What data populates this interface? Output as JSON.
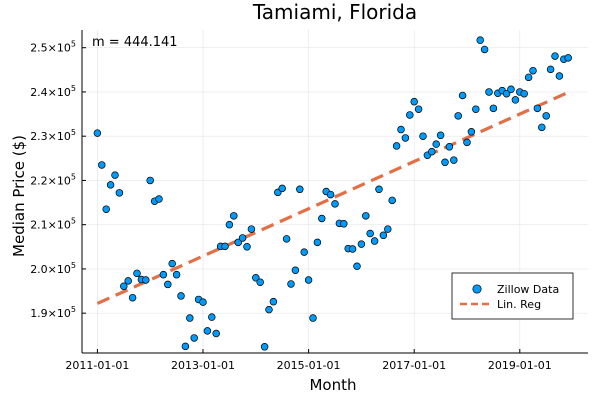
{
  "chart_data": {
    "type": "scatter",
    "title": "Tamiami, Florida",
    "xlabel": "Month",
    "ylabel": "Median Price ($)",
    "annotation": "m = 444.141",
    "x_ticks": [
      {
        "label": "2011-01-01",
        "index": 0
      },
      {
        "label": "2013-01-01",
        "index": 24
      },
      {
        "label": "2015-01-01",
        "index": 48
      },
      {
        "label": "2017-01-01",
        "index": 72
      },
      {
        "label": "2019-01-01",
        "index": 96
      }
    ],
    "y_ticks": [
      {
        "mantissa": "1.9",
        "exp": "5",
        "value": 190000
      },
      {
        "mantissa": "2.0",
        "exp": "5",
        "value": 200000
      },
      {
        "mantissa": "2.1",
        "exp": "5",
        "value": 210000
      },
      {
        "mantissa": "2.2",
        "exp": "5",
        "value": 220000
      },
      {
        "mantissa": "2.3",
        "exp": "5",
        "value": 230000
      },
      {
        "mantissa": "2.4",
        "exp": "5",
        "value": 240000
      },
      {
        "mantissa": "2.5",
        "exp": "5",
        "value": 250000
      }
    ],
    "xlim": [
      -3.5,
      111.5
    ],
    "ylim": [
      181000,
      254000
    ],
    "grid": true,
    "legend_position": "bottom-right",
    "series": [
      {
        "name": "Zillow Data",
        "kind": "scatter",
        "color": "#009af9",
        "points": [
          [
            0,
            230700
          ],
          [
            1,
            223500
          ],
          [
            2,
            213500
          ],
          [
            3,
            219000
          ],
          [
            4,
            221200
          ],
          [
            5,
            217200
          ],
          [
            6,
            196100
          ],
          [
            7,
            197300
          ],
          [
            8,
            193500
          ],
          [
            9,
            199000
          ],
          [
            10,
            197600
          ],
          [
            11,
            197500
          ],
          [
            12,
            220000
          ],
          [
            13,
            215300
          ],
          [
            14,
            215800
          ],
          [
            15,
            198700
          ],
          [
            16,
            196500
          ],
          [
            17,
            201200
          ],
          [
            18,
            198700
          ],
          [
            19,
            193900
          ],
          [
            20,
            182500
          ],
          [
            21,
            188900
          ],
          [
            22,
            184400
          ],
          [
            23,
            193100
          ],
          [
            24,
            192500
          ],
          [
            25,
            186000
          ],
          [
            26,
            189100
          ],
          [
            27,
            185400
          ],
          [
            28,
            205100
          ],
          [
            29,
            205100
          ],
          [
            30,
            210000
          ],
          [
            31,
            212000
          ],
          [
            32,
            206000
          ],
          [
            33,
            207000
          ],
          [
            34,
            205000
          ],
          [
            35,
            209000
          ],
          [
            36,
            198000
          ],
          [
            37,
            197000
          ],
          [
            38,
            182400
          ],
          [
            39,
            190800
          ],
          [
            40,
            192600
          ],
          [
            41,
            217300
          ],
          [
            42,
            218200
          ],
          [
            43,
            206800
          ],
          [
            44,
            196600
          ],
          [
            45,
            199700
          ],
          [
            46,
            218000
          ],
          [
            47,
            203800
          ],
          [
            48,
            197500
          ],
          [
            49,
            188900
          ],
          [
            50,
            206000
          ],
          [
            51,
            211400
          ],
          [
            52,
            217500
          ],
          [
            53,
            216800
          ],
          [
            54,
            214700
          ],
          [
            55,
            210300
          ],
          [
            56,
            210200
          ],
          [
            57,
            204600
          ],
          [
            58,
            204500
          ],
          [
            59,
            200600
          ],
          [
            60,
            205600
          ],
          [
            61,
            212000
          ],
          [
            62,
            208000
          ],
          [
            63,
            206300
          ],
          [
            64,
            218000
          ],
          [
            65,
            207600
          ],
          [
            66,
            209000
          ],
          [
            67,
            215500
          ],
          [
            68,
            227800
          ],
          [
            69,
            231500
          ],
          [
            70,
            229600
          ],
          [
            71,
            234800
          ],
          [
            72,
            237800
          ],
          [
            73,
            236100
          ],
          [
            74,
            230000
          ],
          [
            75,
            225700
          ],
          [
            76,
            226500
          ],
          [
            77,
            228200
          ],
          [
            78,
            230200
          ],
          [
            79,
            224100
          ],
          [
            80,
            227600
          ],
          [
            81,
            224600
          ],
          [
            82,
            234600
          ],
          [
            83,
            239200
          ],
          [
            84,
            228600
          ],
          [
            85,
            231000
          ],
          [
            86,
            236100
          ],
          [
            87,
            251700
          ],
          [
            88,
            249600
          ],
          [
            89,
            240000
          ],
          [
            90,
            236300
          ],
          [
            91,
            239700
          ],
          [
            92,
            240300
          ],
          [
            93,
            239600
          ],
          [
            94,
            240600
          ],
          [
            95,
            238200
          ],
          [
            96,
            240000
          ],
          [
            97,
            239600
          ],
          [
            98,
            243300
          ],
          [
            99,
            244800
          ],
          [
            100,
            236300
          ],
          [
            101,
            232000
          ],
          [
            102,
            234600
          ],
          [
            103,
            245100
          ],
          [
            104,
            248100
          ],
          [
            105,
            243600
          ],
          [
            106,
            247400
          ],
          [
            107,
            247700
          ]
        ]
      },
      {
        "name": "Lin. Reg",
        "kind": "line",
        "color": "#e26f46",
        "points": [
          [
            0,
            192200
          ],
          [
            107,
            239900
          ]
        ]
      }
    ]
  }
}
